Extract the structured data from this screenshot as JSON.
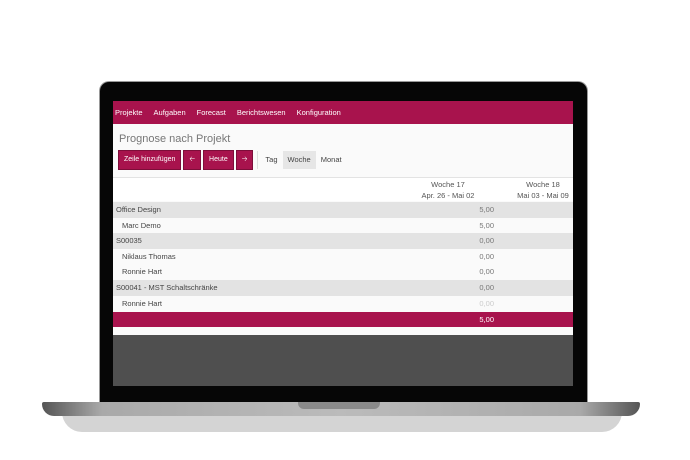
{
  "nav": [
    "Projekte",
    "Aufgaben",
    "Forecast",
    "Berichtswesen",
    "Konfiguration"
  ],
  "page_title": "Prognose nach Projekt",
  "toolbar": {
    "add_row": "Zeile hinzufügen",
    "prev_icon": "arrow-left",
    "today": "Heute",
    "next_icon": "arrow-right",
    "tabs": [
      "Tag",
      "Woche",
      "Monat"
    ],
    "active_tab": "Woche"
  },
  "columns": [
    {
      "week": "Woche 17",
      "range": "Apr. 26 - Mai 02"
    },
    {
      "week": "Woche 18",
      "range": "Mai 03 - Mai 09"
    }
  ],
  "rows": [
    {
      "label": "Office Design",
      "value": "5,00",
      "type": "group"
    },
    {
      "label": "Marc Demo",
      "value": "5,00",
      "type": "sub"
    },
    {
      "label": "S00035",
      "value": "0,00",
      "type": "group"
    },
    {
      "label": "Niklaus Thomas",
      "value": "0,00",
      "type": "sub"
    },
    {
      "label": "Ronnie Hart",
      "value": "0,00",
      "type": "sub"
    },
    {
      "label": "S00041 - MST Schaltschränke",
      "value": "0,00",
      "type": "group"
    },
    {
      "label": "Ronnie Hart",
      "value": "0,00",
      "type": "sub"
    }
  ],
  "total": "5,00",
  "colors": {
    "brand": "#a8134d"
  }
}
